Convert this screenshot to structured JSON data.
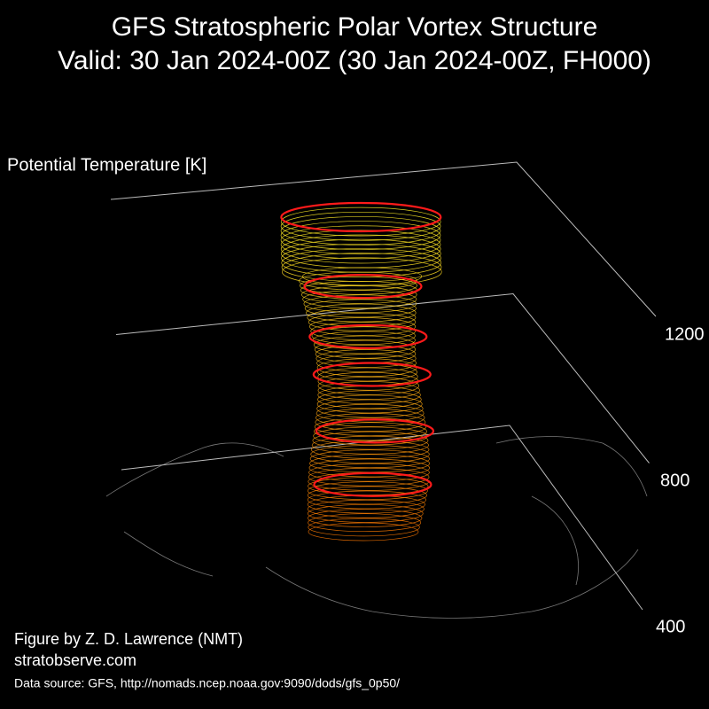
{
  "chart_data": {
    "type": "surface3d",
    "title": "GFS Stratospheric Polar Vortex Structure",
    "subtitle": "Valid: 30 Jan 2024-00Z  (30 Jan 2024-00Z, FH000)",
    "zlabel": "Potential Temperature [K]",
    "zlim": [
      400,
      1200
    ],
    "zticks": [
      400,
      800,
      1200
    ],
    "grid": true,
    "credit": "Figure by Z. D. Lawrence (NMT)",
    "website": "stratobserve.com",
    "source": "Data source: GFS, http://nomads.ncep.noaa.gov:9090/dods/gfs_0p50/"
  }
}
